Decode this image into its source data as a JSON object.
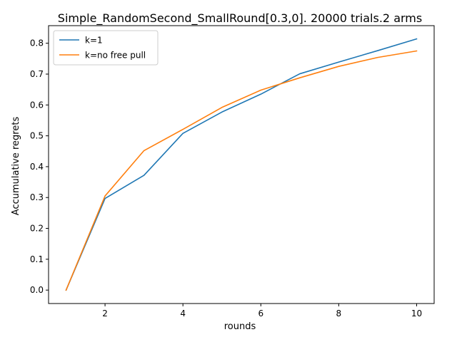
{
  "chart_data": {
    "type": "line",
    "title": "Simple_RandomSecond_SmallRound[0.3,0]. 20000 trials.2 arms",
    "xlabel": "rounds",
    "ylabel": "Accumulative regrets",
    "xlim": [
      0.55,
      10.45
    ],
    "ylim": [
      -0.0435,
      0.857
    ],
    "x_ticks": [
      2,
      4,
      6,
      8,
      10
    ],
    "x_tick_labels": [
      "2",
      "4",
      "6",
      "8",
      "10"
    ],
    "y_ticks": [
      0.0,
      0.1,
      0.2,
      0.3,
      0.4,
      0.5,
      0.6,
      0.7,
      0.8
    ],
    "y_tick_labels": [
      "0.0",
      "0.1",
      "0.2",
      "0.3",
      "0.4",
      "0.5",
      "0.6",
      "0.7",
      "0.8"
    ],
    "grid": false,
    "legend_position": "top-left",
    "x": [
      1,
      2,
      3,
      4,
      5,
      6,
      7,
      8,
      9,
      10
    ],
    "series": [
      {
        "name": "k=1",
        "color": "#1f77b4",
        "values": [
          0.0,
          0.297,
          0.372,
          0.508,
          0.577,
          0.635,
          0.701,
          0.739,
          0.776,
          0.814
        ]
      },
      {
        "name": "k=no free pull",
        "color": "#ff7f0e",
        "values": [
          0.0,
          0.305,
          0.452,
          0.521,
          0.592,
          0.648,
          0.688,
          0.725,
          0.754,
          0.775
        ]
      }
    ]
  }
}
